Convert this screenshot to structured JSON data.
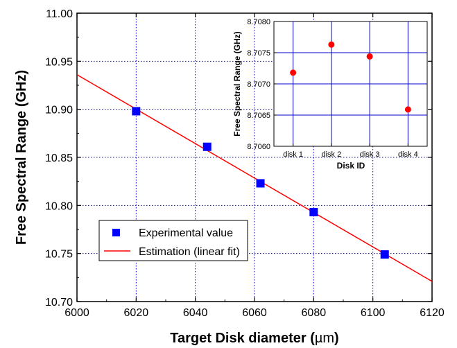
{
  "chart_data": [
    {
      "type": "scatter",
      "xlabel_prefix": "Target Disk diameter (",
      "xlabel_unit": "µm",
      "xlabel_suffix": ")",
      "ylabel": "Free Spectral Range (GHz)",
      "xlim": [
        6000,
        6120
      ],
      "ylim": [
        10.7,
        11.0
      ],
      "x_ticks": [
        "6000",
        "6020",
        "6040",
        "6060",
        "6080",
        "6100",
        "6120"
      ],
      "y_ticks": [
        "10.70",
        "10.75",
        "10.80",
        "10.85",
        "10.90",
        "10.95",
        "11.00"
      ],
      "grid": true,
      "legend_position": "bottom-left",
      "series": [
        {
          "name": "Experimental value",
          "marker": "square",
          "color": "#0000ff",
          "points": [
            {
              "x": 6020,
              "y": 10.898
            },
            {
              "x": 6044,
              "y": 10.861
            },
            {
              "x": 6062,
              "y": 10.823
            },
            {
              "x": 6080,
              "y": 10.793
            },
            {
              "x": 6104,
              "y": 10.749
            }
          ]
        },
        {
          "name": "Estimation (linear fit)",
          "type": "line",
          "color": "#ff0000",
          "points": [
            {
              "x": 6000,
              "y": 10.936
            },
            {
              "x": 6120,
              "y": 10.721
            }
          ]
        }
      ]
    },
    {
      "type": "scatter",
      "xlabel": "Disk ID",
      "ylabel": "Free Spectral Range (GHz)",
      "categories": [
        "disk 1",
        "disk 2",
        "disk 3",
        "disk 4"
      ],
      "ylim": [
        8.706,
        8.708
      ],
      "y_ticks": [
        "8.7060",
        "8.7065",
        "8.7070",
        "8.7075",
        "8.7080"
      ],
      "grid": true,
      "series": [
        {
          "marker": "circle",
          "color": "#ff0000",
          "values": [
            8.70718,
            8.70763,
            8.70744,
            8.70659
          ]
        }
      ]
    }
  ]
}
